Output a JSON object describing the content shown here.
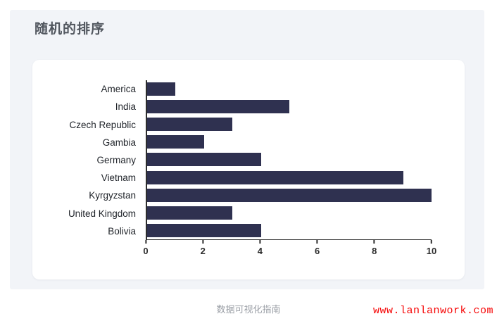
{
  "page": {
    "title": "随机的排序",
    "footer_caption": "数据可视化指南",
    "watermark": "www.lanlanwork.com",
    "colors": {
      "panel_bg": "#f2f4f8",
      "card_bg": "#ffffff",
      "bar": "#2f3150",
      "axis": "#2d2d2d",
      "title_text": "#51565e",
      "label_text": "#1f2329",
      "footer_text": "#9b9fa6",
      "watermark_text": "#f60505"
    }
  },
  "chart_data": {
    "type": "bar",
    "orientation": "horizontal",
    "title": "随机的排序",
    "categories": [
      "America",
      "India",
      "Czech Republic",
      "Gambia",
      "Germany",
      "Vietnam",
      "Kyrgyzstan",
      "United Kingdom",
      "Bolivia"
    ],
    "values": [
      1,
      5,
      3,
      2,
      4,
      9,
      10,
      3,
      4
    ],
    "xlabel": "",
    "ylabel": "",
    "xlim": [
      0,
      10
    ],
    "xticks": [
      0,
      2,
      4,
      6,
      8,
      10
    ],
    "grid": false,
    "legend": false
  }
}
